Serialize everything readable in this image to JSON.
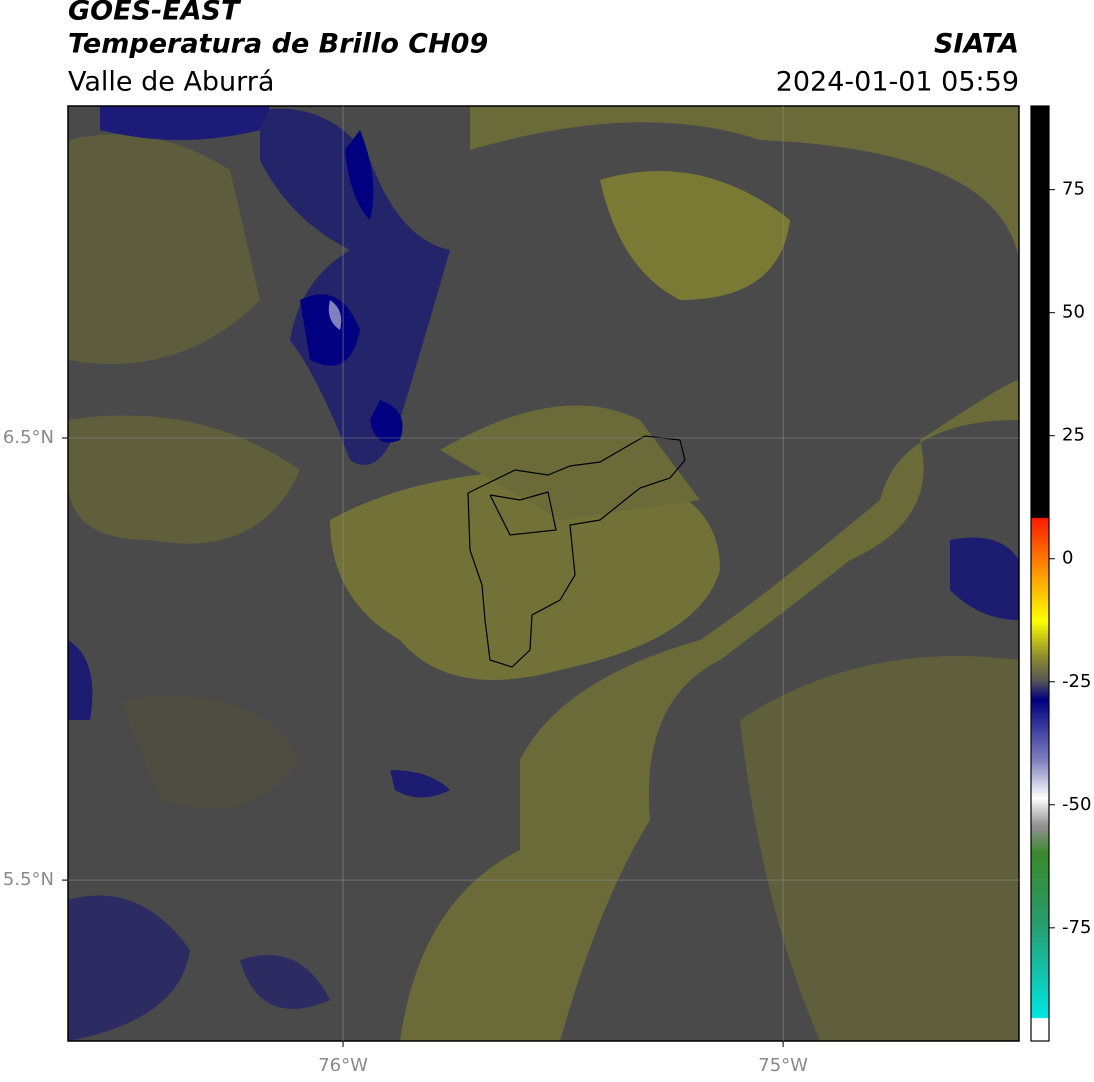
{
  "header": {
    "title": "GOES-EAST",
    "subtitle": "Temperatura de Brillo CH09",
    "region": "Valle de Aburrá",
    "source": "SIATA",
    "datetime": "2024-01-01 05:59"
  },
  "map": {
    "lon_range": [
      -76.625,
      -74.464
    ],
    "lat_range": [
      5.136,
      7.251
    ],
    "lon_ticks": [
      {
        "value": -76,
        "label": "76°W"
      },
      {
        "value": -75,
        "label": "75°W"
      }
    ],
    "lat_ticks": [
      {
        "value": 6.5,
        "label": "6.5°N"
      },
      {
        "value": 5.5,
        "label": "5.5°N"
      }
    ]
  },
  "colorbar": {
    "range": [
      -98,
      92
    ],
    "ticks": [
      75,
      50,
      25,
      0,
      -25,
      -50,
      -75
    ]
  }
}
